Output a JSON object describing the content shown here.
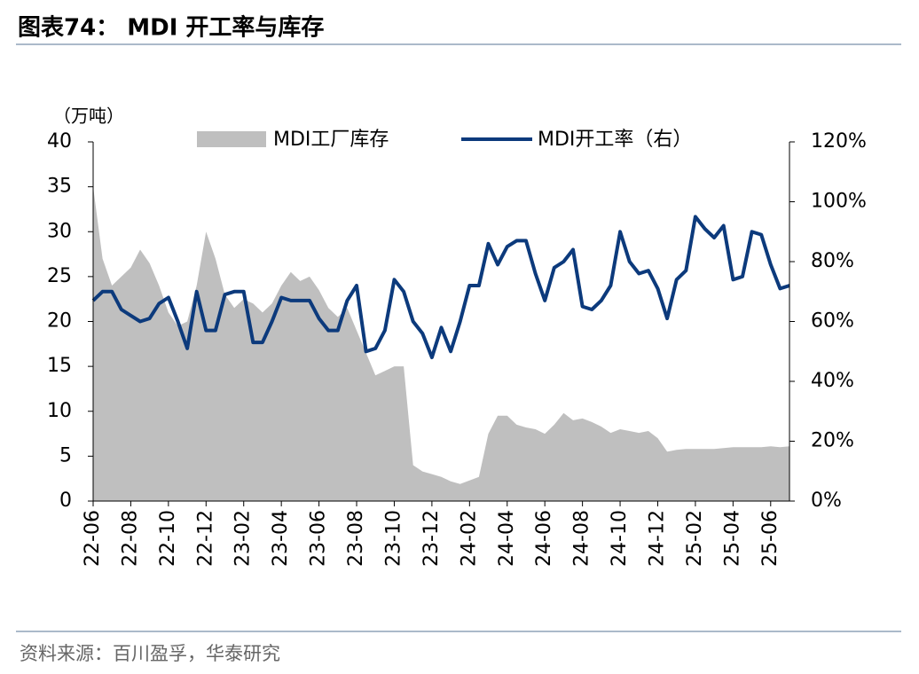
{
  "header": {
    "title": "图表74： MDI 开工率与库存"
  },
  "chart_data": {
    "type": "area_line",
    "y_label": "（万吨）",
    "categories": [
      "22-06",
      null,
      null,
      null,
      "22-08",
      null,
      null,
      null,
      "22-10",
      null,
      null,
      null,
      "22-12",
      null,
      null,
      null,
      "23-02",
      null,
      null,
      null,
      "23-04",
      null,
      null,
      null,
      "23-06",
      null,
      null,
      null,
      "23-08",
      null,
      null,
      null,
      "23-10",
      null,
      null,
      null,
      "23-12",
      null,
      null,
      null,
      "24-02",
      null,
      null,
      null,
      "24-04",
      null,
      null,
      null,
      "24-06",
      null,
      null,
      null,
      "24-08",
      null,
      null,
      null,
      "24-10",
      null,
      null,
      null,
      "24-12",
      null,
      null,
      null,
      "25-02",
      null,
      null,
      null,
      "25-04",
      null,
      null,
      null,
      "25-06",
      null,
      null
    ],
    "series": [
      {
        "name": "MDI工厂库存",
        "type": "area",
        "color": "#bfbfbf",
        "values": [
          35,
          27,
          24,
          25,
          26,
          28,
          26.5,
          24,
          21,
          19.5,
          20,
          24,
          30,
          27,
          23,
          21.5,
          22.5,
          22,
          21,
          22,
          24,
          25.5,
          24.5,
          25,
          23.5,
          21.5,
          20.5,
          21.5,
          19,
          16.5,
          14,
          14.5,
          15,
          15,
          4,
          3.3,
          3,
          2.7,
          2.2,
          1.9,
          2.3,
          2.7,
          7.5,
          9.5,
          9.5,
          8.5,
          8.2,
          8,
          7.5,
          8.5,
          9.8,
          9,
          9.2,
          8.8,
          8.3,
          7.6,
          8,
          7.8,
          7.6,
          7.8,
          7,
          5.5,
          5.7,
          5.8,
          5.8,
          5.8,
          5.8,
          5.9,
          6,
          6,
          6,
          6,
          6.1,
          6,
          6.1
        ]
      },
      {
        "name": "MDI开工率（右）",
        "type": "line",
        "axis": "y2",
        "color": "#0c3a7c",
        "values": [
          67,
          70,
          70,
          64,
          62,
          60,
          61,
          66,
          68,
          60,
          51,
          70,
          57,
          57,
          69,
          70,
          70,
          53,
          53,
          60,
          68,
          67,
          67,
          67,
          61,
          57,
          57,
          67,
          72,
          50,
          51,
          57,
          74,
          70,
          60,
          56,
          48,
          58,
          50,
          60,
          72,
          72,
          86,
          79,
          85,
          87,
          87,
          76,
          67,
          78,
          80,
          84,
          65,
          64,
          67,
          72,
          90,
          80,
          76,
          77,
          71,
          61,
          74,
          77,
          95,
          91,
          88,
          92,
          74,
          75,
          90,
          89,
          79,
          71,
          72
        ]
      }
    ],
    "ylim": [
      0,
      40
    ],
    "yticks": [
      0,
      5,
      10,
      15,
      20,
      25,
      30,
      35,
      40
    ],
    "y2lim": [
      0,
      120
    ],
    "y2ticks": [
      {
        "value": 0,
        "label": "0%"
      },
      {
        "value": 20,
        "label": "20%"
      },
      {
        "value": 40,
        "label": "40%"
      },
      {
        "value": 60,
        "label": "60%"
      },
      {
        "value": 80,
        "label": "80%"
      },
      {
        "value": 100,
        "label": "100%"
      },
      {
        "value": 120,
        "label": "120%"
      }
    ]
  },
  "footer": {
    "source": "资料来源：百川盈孚，华泰研究"
  }
}
